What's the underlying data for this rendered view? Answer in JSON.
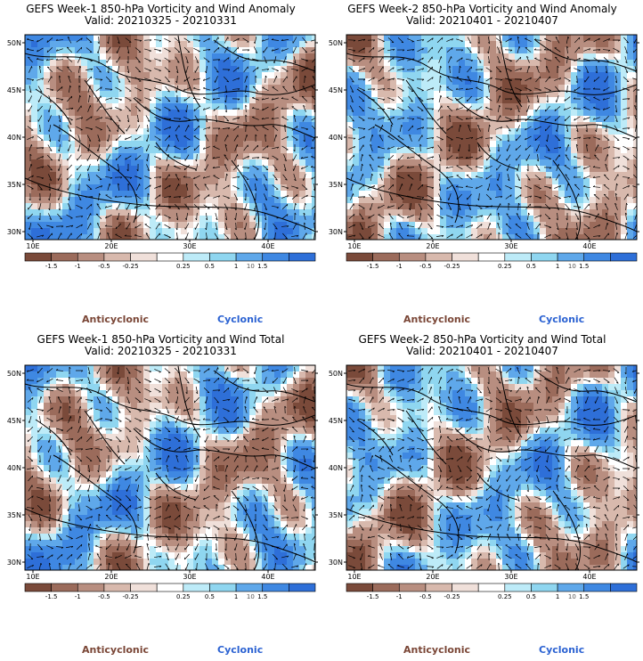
{
  "panels": [
    {
      "line1": "GEFS Week-1 850-hPa Vorticity and Wind Anomaly",
      "line2": "Valid: 20210325 - 20210331"
    },
    {
      "line1": "GEFS Week-2 850-hPa Vorticity and Wind Anomaly",
      "line2": "Valid: 20210401 - 20210407"
    },
    {
      "line1": "GEFS Week-1 850-hPa Vorticity and Wind Total",
      "line2": "Valid: 20210325 - 20210331"
    },
    {
      "line1": "GEFS Week-2 850-hPa Vorticity and Wind Total",
      "line2": "Valid: 20210401 - 20210407"
    }
  ],
  "lat_ticks": [
    "50N",
    "45N",
    "40N",
    "35N",
    "30N"
  ],
  "lon_ticks": [
    "10E",
    "20E",
    "30E",
    "40E"
  ],
  "colorbar": {
    "labels": [
      "-1.5",
      "-1",
      "-0.5",
      "-0.25",
      "0.25",
      "0.5",
      "1",
      "1.5"
    ],
    "scale_note": "10",
    "colors": [
      "#7a4a3a",
      "#9b6b5b",
      "#b88e80",
      "#d8b9ad",
      "#f0e0da",
      "#ffffff",
      "#bdebf8",
      "#8fd6f0",
      "#5fa8ea",
      "#3f88e2",
      "#2e6fd8"
    ]
  },
  "legend": {
    "anticyclonic": "Anticyclonic",
    "cyclonic": "Cyclonic"
  }
}
